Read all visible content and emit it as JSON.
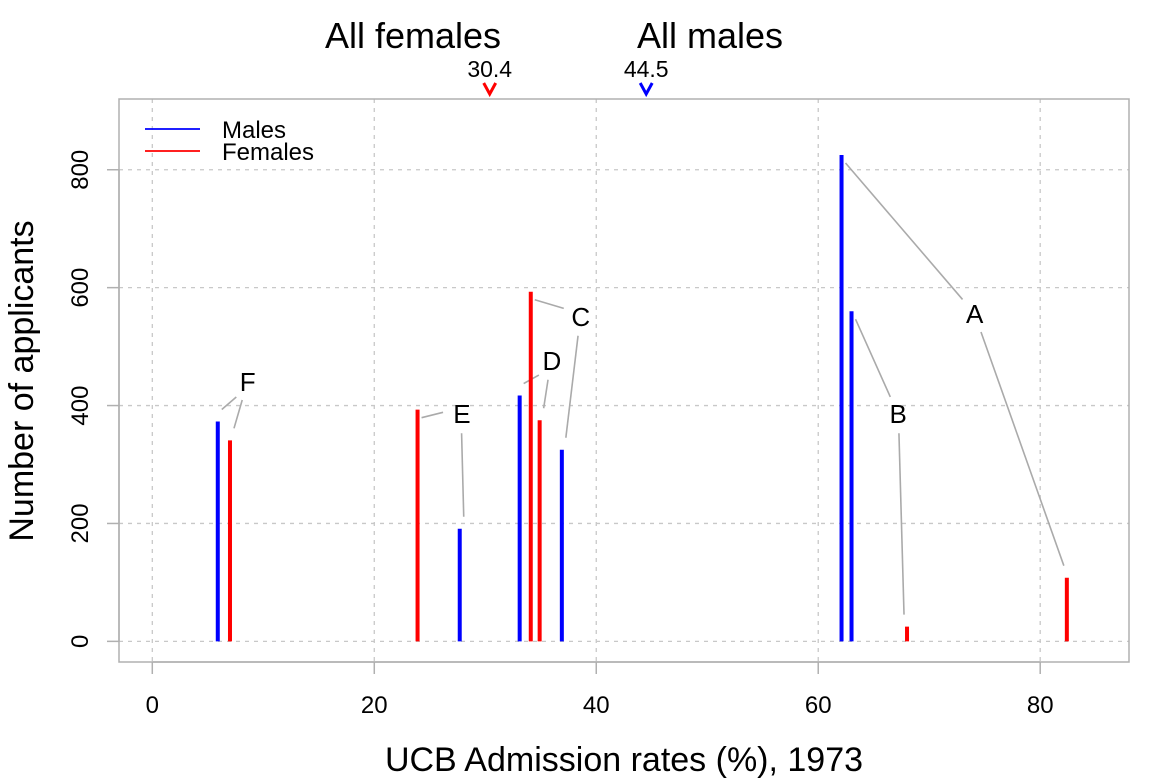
{
  "chart_data": {
    "type": "bar",
    "title": "",
    "xlabel": "UCB Admission rates (%), 1973",
    "ylabel": "Number of applicants",
    "xlim": [
      -3,
      88
    ],
    "ylim": [
      -35,
      920
    ],
    "xticks": [
      0,
      20,
      40,
      60,
      80
    ],
    "yticks": [
      0,
      200,
      400,
      600,
      800
    ],
    "grid": true,
    "legend": {
      "placement": "top-left",
      "entries": [
        {
          "name": "Males",
          "color": "#0000ff"
        },
        {
          "name": "Females",
          "color": "#ff0000"
        }
      ]
    },
    "series": [
      {
        "name": "Males",
        "color": "#0000ff",
        "points": [
          {
            "dept": "A",
            "x": 62.1,
            "y": 825
          },
          {
            "dept": "B",
            "x": 63.0,
            "y": 560
          },
          {
            "dept": "C",
            "x": 36.9,
            "y": 325
          },
          {
            "dept": "D",
            "x": 33.1,
            "y": 417
          },
          {
            "dept": "E",
            "x": 27.7,
            "y": 191
          },
          {
            "dept": "F",
            "x": 5.9,
            "y": 373
          }
        ]
      },
      {
        "name": "Females",
        "color": "#ff0000",
        "points": [
          {
            "dept": "A",
            "x": 82.4,
            "y": 108
          },
          {
            "dept": "B",
            "x": 68.0,
            "y": 25
          },
          {
            "dept": "C",
            "x": 34.1,
            "y": 593
          },
          {
            "dept": "D",
            "x": 34.9,
            "y": 375
          },
          {
            "dept": "E",
            "x": 23.9,
            "y": 393
          },
          {
            "dept": "F",
            "x": 7.0,
            "y": 341
          }
        ]
      }
    ],
    "department_labels": [
      {
        "text": "A",
        "x": 74.1,
        "y": 540,
        "male": [
          62.1,
          825
        ],
        "female": [
          82.4,
          108
        ]
      },
      {
        "text": "B",
        "x": 67.2,
        "y": 370,
        "male": [
          63.0,
          560
        ],
        "female": [
          68.0,
          25
        ]
      },
      {
        "text": "C",
        "x": 38.6,
        "y": 535,
        "male": [
          36.9,
          325
        ],
        "female": [
          34.1,
          593
        ]
      },
      {
        "text": "D",
        "x": 36.0,
        "y": 460,
        "male": [
          33.1,
          417
        ],
        "female": [
          34.9,
          375
        ]
      },
      {
        "text": "E",
        "x": 27.9,
        "y": 370,
        "male": [
          27.7,
          191
        ],
        "female": [
          23.9,
          393
        ]
      },
      {
        "text": "F",
        "x": 8.6,
        "y": 425,
        "male": [
          5.9,
          373
        ],
        "female": [
          7.0,
          341
        ]
      }
    ],
    "overall": [
      {
        "group": "All females",
        "label": "All females",
        "value": 30.4,
        "value_text": "30.4",
        "color": "#ff0000",
        "marker": "v"
      },
      {
        "group": "All males",
        "label": "All males",
        "value": 44.5,
        "value_text": "44.5",
        "color": "#0000ff",
        "marker": "v"
      }
    ]
  }
}
